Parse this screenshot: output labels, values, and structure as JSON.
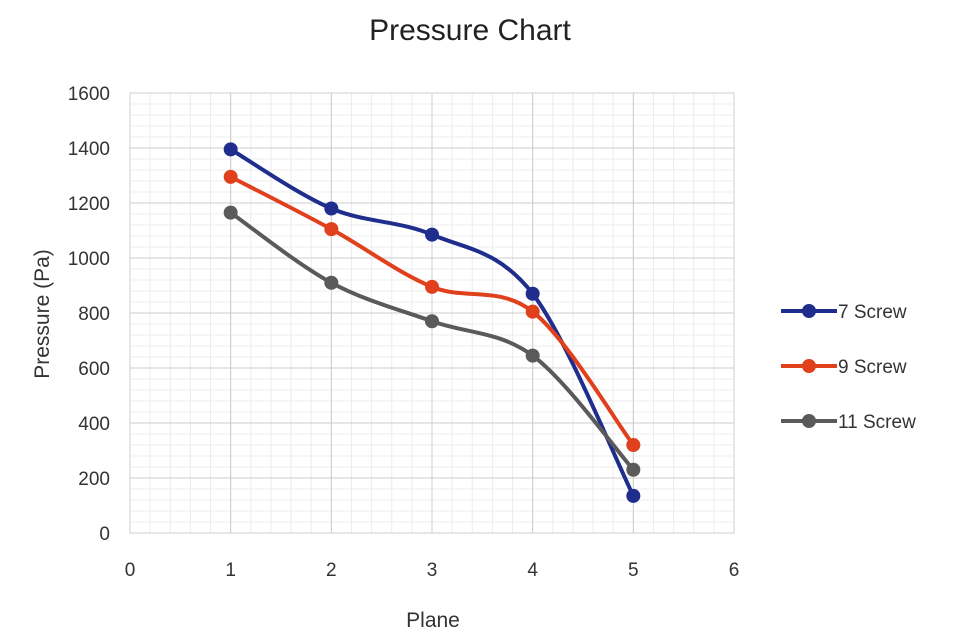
{
  "chart_data": {
    "type": "line",
    "title": "Pressure Chart",
    "xlabel": "Plane",
    "ylabel": "Pressure (Pa)",
    "xlim": [
      0,
      6
    ],
    "ylim": [
      0,
      1600
    ],
    "x_ticks": [
      0,
      1,
      2,
      3,
      4,
      5,
      6
    ],
    "y_ticks": [
      0,
      200,
      400,
      600,
      800,
      1000,
      1200,
      1400,
      1600
    ],
    "grid": true,
    "legend_position": "right",
    "x": [
      1,
      2,
      3,
      4,
      5
    ],
    "series": [
      {
        "name": "7 Screw",
        "color": "#1f2e8c",
        "values": [
          1395,
          1180,
          1085,
          870,
          135
        ]
      },
      {
        "name": "9 Screw",
        "color": "#e0401c",
        "values": [
          1295,
          1105,
          895,
          805,
          320
        ]
      },
      {
        "name": "11 Screw",
        "color": "#5a5a5a",
        "values": [
          1165,
          910,
          770,
          645,
          230
        ]
      }
    ]
  }
}
